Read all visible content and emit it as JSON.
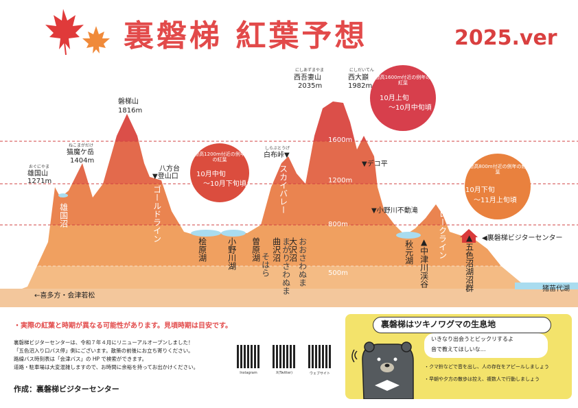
{
  "header": {
    "title": "裏磐梯 紅葉予想",
    "version": "2025.ver"
  },
  "peaks": [
    {
      "ruby": "おぐにやま",
      "name": "雄国山",
      "elev": "1271m"
    },
    {
      "ruby": "ねこまがだけ",
      "name": "猫魔ケ岳",
      "elev": "1404m"
    },
    {
      "name": "磐梯山",
      "elev": "1816m"
    },
    {
      "ruby": "にしあずまやま",
      "name": "西吾妻山",
      "elev": "2035m"
    },
    {
      "ruby": "にしだいてん",
      "name": "西大巓",
      "elev": "1982m"
    }
  ],
  "places": {
    "happodai": "八方台",
    "tozanguchi": "▼登山口",
    "shirafu_ruby": "しらぶとうげ",
    "shirafu": "白布峠▼",
    "dekodaira": "▼デコ平",
    "onogawa_fall": "▼小野川不動滝",
    "visitor_center": "◀裏磐梯ビジターセンター",
    "inawashiro": "猪苗代湖",
    "kitakata": "←喜多方・会津若松"
  },
  "roads": {
    "gold": "ゴールドライン",
    "sky": "スカイバレー",
    "lake": "レークライン"
  },
  "lakes": {
    "oguni": "雄国沼",
    "hibara": "桧原湖",
    "onogawa": "小野川湖",
    "sobara_ruby": "そはら",
    "sobara": "曽原湖",
    "magari_ruby": "まがりさわぬま",
    "magari": "曲沢沼",
    "osawa_ruby": "おおさわぬま",
    "osawa": "大沢沼",
    "akimoto": "秋元湖",
    "nakatsugawa": "▲中津川渓谷",
    "goshiki": "▲五色沼湖沼群"
  },
  "altitudes": [
    "1600m",
    "1200m",
    "800m",
    "500m"
  ],
  "forecasts": [
    {
      "title": "標高1600m付近の例年の紅葉",
      "line1": "10月上旬",
      "line2": "〜10月中旬頃"
    },
    {
      "title": "標高1200m付近の例年の紅葉",
      "line1": "10月中旬",
      "line2": "〜10月下旬頃"
    },
    {
      "title": "標高800m付近の例年の紅葉",
      "line1": "10月下旬",
      "line2": "〜11月上旬頃"
    }
  ],
  "notes": {
    "warning": "・実際の紅葉と時期が異なる可能性があります。見頃時期は目安です。",
    "line1": "裏磐梯ビジターセンターは、令和７年４月にリニューアルオープンしました！",
    "line2": "「五色沼入り口バス停」側にございます。散策の前後にお立ち寄りください。",
    "line3": "路線バス時刻表は「会津バス」の HP で検索ができます。",
    "line4": "道路・駐車場は大変混雑しますので、お時間に余裕を持ってお出かけください。",
    "author": "作成：裏磐梯ビジターセンター"
  },
  "qr": [
    "Instagram",
    "X(Twitter)",
    "ウェブサイト"
  ],
  "bear": {
    "title": "裏磐梯はツキノワグマの生息地",
    "speech1": "いきなり出会うとビックリするよ",
    "speech2": "音で教えてほしいな…",
    "tip1": "・クマ鈴などで音を出し、人の存在をアピールしましょう",
    "tip2": "・早朝や夕方の散歩は控え、複数人で行動しましょう"
  },
  "colors": {
    "title": "#e24a4a",
    "mountain_top": "#e0584a",
    "mountain_mid": "#ea7a4a",
    "mountain_low": "#f0a060",
    "ground": "#f5c79a",
    "lake": "#a9dcef",
    "bear_panel": "#f3e36b"
  }
}
